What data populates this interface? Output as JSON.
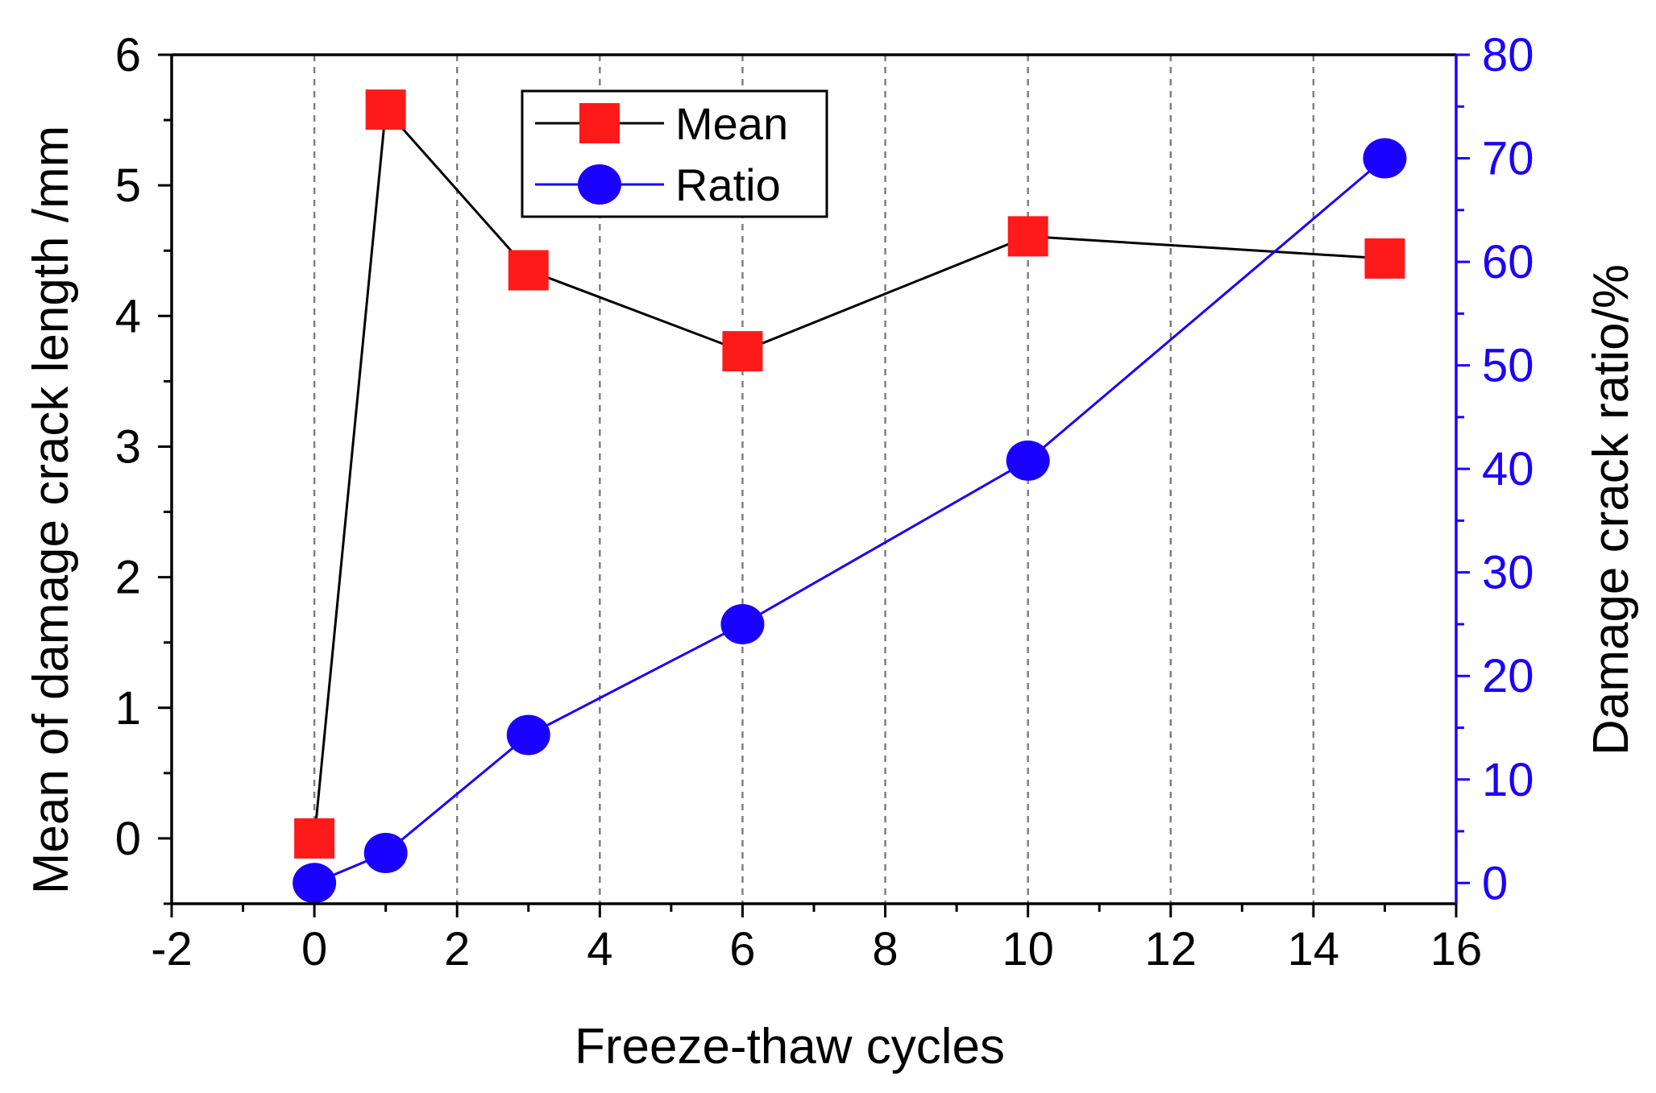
{
  "chart_data": {
    "type": "line",
    "title": "",
    "xlabel": "Freeze-thaw cycles",
    "ylabel": "Mean of damage crack length /mm",
    "y2label": "Damage crack ratio/%",
    "xlim": [
      -2,
      16
    ],
    "ylim": [
      -0.5,
      6
    ],
    "y2lim": [
      -2,
      80
    ],
    "x_ticks": [
      "-2",
      "0",
      "2",
      "4",
      "6",
      "8",
      "10",
      "12",
      "14",
      "16"
    ],
    "y_ticks": [
      "0",
      "1",
      "2",
      "3",
      "4",
      "5",
      "6"
    ],
    "y2_ticks": [
      "0",
      "10",
      "20",
      "30",
      "40",
      "50",
      "60",
      "70",
      "80"
    ],
    "x_tick_values": [
      -2,
      0,
      2,
      4,
      6,
      8,
      10,
      12,
      14,
      16
    ],
    "y_tick_values": [
      0,
      1,
      2,
      3,
      4,
      5,
      6
    ],
    "y2_tick_values": [
      0,
      10,
      20,
      30,
      40,
      50,
      60,
      70,
      80
    ],
    "grid": "vertical dashed",
    "legend_position": "top-left",
    "series": [
      {
        "name": "Mean",
        "axis": "left",
        "marker": "square",
        "line_color": "#000000",
        "marker_color": "#ff1a1a",
        "x": [
          0,
          1,
          3,
          6,
          10,
          15
        ],
        "values": [
          0,
          5.58,
          4.35,
          3.73,
          4.61,
          4.44
        ]
      },
      {
        "name": "Ratio",
        "axis": "right",
        "marker": "circle",
        "line_color": "#1a00ff",
        "marker_color": "#1a00ff",
        "x": [
          0,
          1,
          3,
          6,
          10,
          15
        ],
        "values": [
          0,
          2.9,
          14.3,
          25.0,
          40.8,
          70.0
        ]
      }
    ]
  },
  "colors": {
    "right_axis": "#1a00ff",
    "left_axis": "#000000",
    "grid": "#808080"
  }
}
